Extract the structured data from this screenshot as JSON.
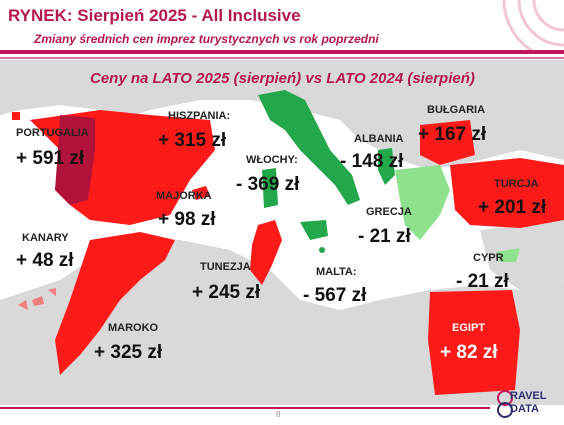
{
  "header": {
    "title": "RYNEK: Sierpień 2025 - All Inclusive",
    "subtitle": "Zmiany średnich cen imprez turystycznych vs rok poprzedni"
  },
  "map": {
    "title": "Ceny na LATO 2025 (sierpień) vs  LATO 2024 (sierpień)",
    "colors": {
      "increase": "#ff1a1a",
      "decrease": "#22a84a",
      "portugal": "#b0123a",
      "land": "#d9d9d9",
      "sea": "#ffffff"
    },
    "countries": [
      {
        "id": "portugalia",
        "label": "PORTUGALIA",
        "value": "+ 591 zł"
      },
      {
        "id": "hiszpania",
        "label": "HISZPANIA:",
        "value": "+ 315 zł"
      },
      {
        "id": "majorka",
        "label": "MAJORKA",
        "value": "+ 98 zł"
      },
      {
        "id": "kanary",
        "label": "KANARY",
        "value": "+ 48 zł"
      },
      {
        "id": "maroko",
        "label": "MAROKO",
        "value": "+ 325 zł"
      },
      {
        "id": "tunezja",
        "label": "TUNEZJA",
        "value": "+ 245 zł"
      },
      {
        "id": "wlochy",
        "label": "WŁOCHY:",
        "value": "- 369 zł"
      },
      {
        "id": "malta",
        "label": "MALTA:",
        "value": "- 567 zł"
      },
      {
        "id": "albania",
        "label": "ALBANIA",
        "value": "- 148 zł"
      },
      {
        "id": "grecja",
        "label": "GRECJA",
        "value": "- 21 zł"
      },
      {
        "id": "bulgaria",
        "label": "BUŁGARIA",
        "value": "+ 167 zł"
      },
      {
        "id": "turcja",
        "label": "TURCJA",
        "value": "+ 201 zł"
      },
      {
        "id": "cypr",
        "label": "CYPR",
        "value": "- 21 zł"
      },
      {
        "id": "egipt",
        "label": "EGIPT",
        "value": "+ 82 zł"
      }
    ]
  },
  "footer": {
    "page_number": "8",
    "logo_top": "RAVEL",
    "logo_bottom": "DATA"
  }
}
